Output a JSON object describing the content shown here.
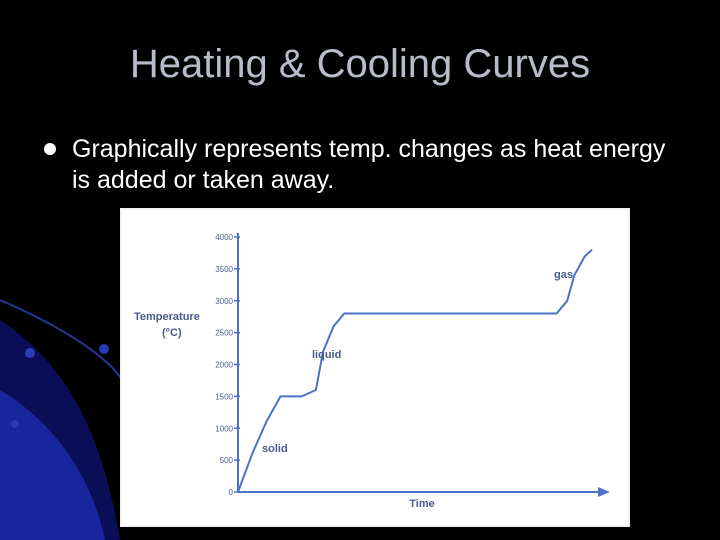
{
  "slide": {
    "title": "Heating & Cooling Curves",
    "bullet": "Graphically represents temp. changes as heat energy is added or taken away."
  },
  "colors": {
    "background": "#000000",
    "title": "#b7bcc8",
    "curve": "#4a73c8",
    "axis_labels": "#4a5a8a",
    "accent_swoosh": "#1a2aa8"
  },
  "chart_data": {
    "type": "line",
    "ylabel": "Temperature (°C)",
    "xlabel": "Time",
    "ylim": [
      0,
      4000
    ],
    "y_ticks": [
      0,
      500,
      1000,
      1500,
      2000,
      2500,
      3000,
      3500,
      4000
    ],
    "annotations": [
      "solid",
      "liquid",
      "gas"
    ],
    "series": [
      {
        "x": [
          0,
          4,
          8,
          12,
          15,
          18,
          22,
          24,
          27,
          30,
          35,
          40,
          60,
          80,
          90,
          93,
          95,
          98,
          100
        ],
        "y": [
          0,
          600,
          1100,
          1500,
          1500,
          1500,
          1600,
          2200,
          2600,
          2800,
          2800,
          2800,
          2800,
          2800,
          2800,
          3000,
          3400,
          3700,
          3800
        ]
      }
    ]
  }
}
